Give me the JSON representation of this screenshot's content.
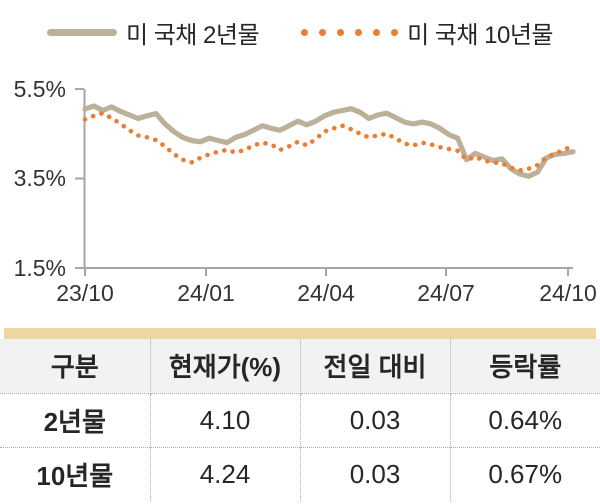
{
  "legend": [
    {
      "label": "미 국채 2년물",
      "color": "#BCB098",
      "style": "solid"
    },
    {
      "label": "미 국채 10년물",
      "color": "#ED7D31",
      "style": "dotted"
    }
  ],
  "chart_data": {
    "type": "line",
    "title": "",
    "xlabel": "",
    "ylabel": "",
    "y_unit": "%",
    "ylim": [
      1.5,
      5.5
    ],
    "y_tick_labels": [
      "5.5%",
      "3.5%",
      "1.5%"
    ],
    "y_tick_values": [
      5.5,
      3.5,
      1.5
    ],
    "x_tick_labels": [
      "23/10",
      "24/01",
      "24/04",
      "24/07",
      "24/10"
    ],
    "grid": false,
    "legend_position": "top",
    "series": [
      {
        "name": "미 국채 2년물",
        "color": "#BCB098",
        "line_style": "solid",
        "values": [
          5.05,
          5.12,
          5.02,
          5.1,
          5.0,
          4.92,
          4.84,
          4.9,
          4.95,
          4.72,
          4.55,
          4.42,
          4.35,
          4.32,
          4.4,
          4.35,
          4.3,
          4.42,
          4.48,
          4.58,
          4.68,
          4.62,
          4.58,
          4.68,
          4.78,
          4.7,
          4.78,
          4.9,
          4.98,
          5.02,
          5.06,
          4.98,
          4.84,
          4.92,
          4.96,
          4.86,
          4.76,
          4.72,
          4.76,
          4.72,
          4.62,
          4.48,
          4.4,
          3.92,
          4.06,
          3.98,
          3.9,
          3.94,
          3.72,
          3.6,
          3.55,
          3.64,
          3.96,
          4.04,
          4.06,
          4.1
        ]
      },
      {
        "name": "미 국채 10년물",
        "color": "#ED7D31",
        "line_style": "dotted",
        "values": [
          4.82,
          4.9,
          4.96,
          4.85,
          4.72,
          4.58,
          4.46,
          4.42,
          4.36,
          4.22,
          4.05,
          3.92,
          3.86,
          3.96,
          4.04,
          4.1,
          4.14,
          4.08,
          4.14,
          4.24,
          4.3,
          4.26,
          4.14,
          4.22,
          4.32,
          4.24,
          4.38,
          4.55,
          4.62,
          4.68,
          4.6,
          4.5,
          4.42,
          4.46,
          4.5,
          4.4,
          4.28,
          4.24,
          4.3,
          4.26,
          4.2,
          4.16,
          4.12,
          3.92,
          3.98,
          3.9,
          3.86,
          3.84,
          3.74,
          3.68,
          3.72,
          3.8,
          3.98,
          4.06,
          4.14,
          4.24
        ]
      }
    ]
  },
  "table": {
    "accent_color": "#EDD8A2",
    "headers": [
      "구분",
      "현재가(%)",
      "전일 대비",
      "등락률"
    ],
    "rows": [
      [
        "2년물",
        "4.10",
        "0.03",
        "0.64%"
      ],
      [
        "10년물",
        "4.24",
        "0.03",
        "0.67%"
      ]
    ]
  },
  "colors": {
    "series_2y": "#BCB098",
    "series_10y": "#ED7D31",
    "axis": "#A6A6A6",
    "text": "#262626",
    "table_header_bg": "#F2F2F2",
    "table_border": "#ADADAD",
    "accent_bar": "#EDD8A2"
  }
}
